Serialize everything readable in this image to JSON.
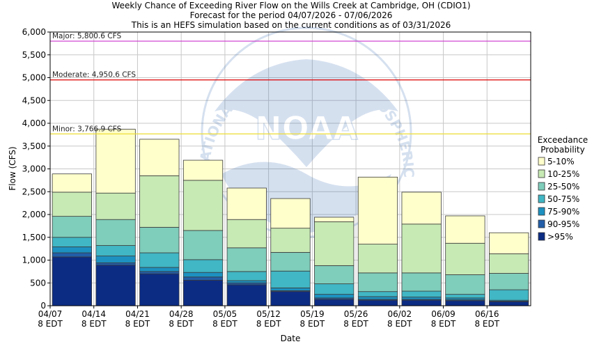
{
  "title_lines": [
    "Weekly Chance of Exceeding River Flow on the Wills Creek at Cambridge, OH (CDIO1)",
    "Forecast for the period 04/07/2026 - 07/06/2026",
    "This is an HEFS simulation based on the current conditions as of 03/31/2026"
  ],
  "watermark": {
    "logo_text": "NOAA",
    "ring_text": "NATIONAL OCEANIC AND ATMOSPHERIC ADMINISTRATION"
  },
  "colors": {
    "band_5_10": "#ffffcc",
    "band_10_25": "#c7e9b4",
    "band_25_50": "#7fcdbb",
    "band_50_75": "#41b6c4",
    "band_75_90": "#1d91c0",
    "band_90_95": "#225ea8",
    "band_gt95": "#0c2c84",
    "major": "#cc33cc",
    "moderate": "#dd0000",
    "minor": "#eedd33",
    "grid": "#c8c8c8"
  },
  "chart_data": {
    "type": "bar",
    "stacked": true,
    "xlabel": "Date",
    "ylabel": "Flow (CFS)",
    "ylim": [
      0,
      6000
    ],
    "yticks": [
      "0",
      "500",
      "1,000",
      "1,500",
      "2,000",
      "2,500",
      "3,000",
      "3,500",
      "4,000",
      "4,500",
      "5,000",
      "5,500",
      "6,000"
    ],
    "ytick_values": [
      0,
      500,
      1000,
      1500,
      2000,
      2500,
      3000,
      3500,
      4000,
      4500,
      5000,
      5500,
      6000
    ],
    "xticks": [
      {
        "date": "04/07",
        "time": "8 EDT"
      },
      {
        "date": "04/14",
        "time": "8 EDT"
      },
      {
        "date": "04/21",
        "time": "8 EDT"
      },
      {
        "date": "04/28",
        "time": "8 EDT"
      },
      {
        "date": "05/05",
        "time": "8 EDT"
      },
      {
        "date": "05/12",
        "time": "8 EDT"
      },
      {
        "date": "05/19",
        "time": "8 EDT"
      },
      {
        "date": "05/26",
        "time": "8 EDT"
      },
      {
        "date": "06/02",
        "time": "8 EDT"
      },
      {
        "date": "06/09",
        "time": "8 EDT"
      },
      {
        "date": "06/16",
        "time": "8 EDT"
      }
    ],
    "flood_levels": [
      {
        "label": "Major: 5,800.6 CFS",
        "value": 5800.6,
        "color_key": "major"
      },
      {
        "label": "Moderate: 4,950.6 CFS",
        "value": 4950.6,
        "color_key": "moderate"
      },
      {
        "label": "Minor: 3,766.9 CFS",
        "value": 3766.9,
        "color_key": "minor"
      }
    ],
    "legend": {
      "title_lines": [
        "Exceedance",
        "Probability"
      ],
      "position": "right",
      "items": [
        {
          "label": "5-10%",
          "color_key": "band_5_10"
        },
        {
          "label": "10-25%",
          "color_key": "band_10_25"
        },
        {
          "label": "25-50%",
          "color_key": "band_25_50"
        },
        {
          "label": "50-75%",
          "color_key": "band_50_75"
        },
        {
          "label": "75-90%",
          "color_key": "band_75_90"
        },
        {
          "label": "90-95%",
          "color_key": "band_90_95"
        },
        {
          "label": ">95%",
          "color_key": "band_gt95"
        }
      ]
    },
    "band_keys": [
      "band_gt95",
      "band_90_95",
      "band_75_90",
      "band_50_75",
      "band_25_50",
      "band_10_25",
      "band_5_10"
    ],
    "weeks": [
      {
        "start": "04/07",
        "thresholds": [
          0,
          1070,
          1160,
          1290,
          1500,
          1960,
          2490,
          2890
        ]
      },
      {
        "start": "04/14",
        "thresholds": [
          0,
          890,
          940,
          1090,
          1320,
          1890,
          2470,
          3870
        ]
      },
      {
        "start": "04/21",
        "thresholds": [
          0,
          700,
          750,
          840,
          1160,
          1720,
          2850,
          3650
        ]
      },
      {
        "start": "04/28",
        "thresholds": [
          0,
          560,
          630,
          730,
          1010,
          1650,
          2750,
          3190
        ]
      },
      {
        "start": "05/05",
        "thresholds": [
          0,
          460,
          500,
          550,
          750,
          1270,
          1890,
          2580
        ]
      },
      {
        "start": "05/12",
        "thresholds": [
          0,
          310,
          330,
          390,
          760,
          1170,
          1700,
          2350
        ]
      },
      {
        "start": "05/19",
        "thresholds": [
          0,
          140,
          170,
          250,
          480,
          880,
          1840,
          1940
        ]
      },
      {
        "start": "05/26",
        "thresholds": [
          0,
          120,
          140,
          200,
          310,
          720,
          1350,
          2820
        ]
      },
      {
        "start": "06/02",
        "thresholds": [
          0,
          120,
          140,
          190,
          320,
          720,
          1790,
          2490
        ]
      },
      {
        "start": "06/09",
        "thresholds": [
          0,
          110,
          130,
          170,
          250,
          680,
          1370,
          1970
        ]
      },
      {
        "start": "06/16",
        "thresholds": [
          0,
          90,
          100,
          120,
          350,
          710,
          1140,
          1600
        ]
      }
    ],
    "grid": true
  }
}
